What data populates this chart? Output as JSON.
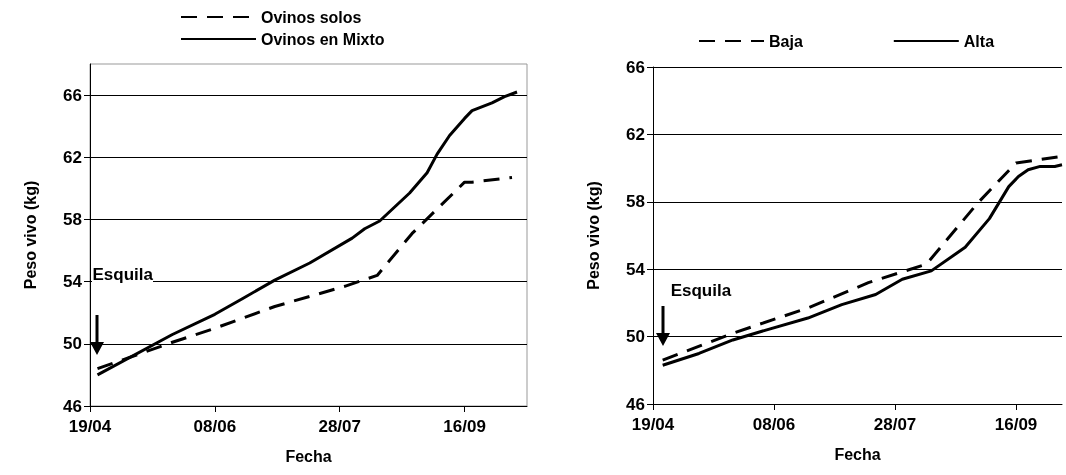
{
  "chart_data": [
    {
      "type": "line",
      "xlabel": "Fecha",
      "ylabel": "Peso vivo (kg)",
      "xlim": [
        "--04-19",
        "--10-11"
      ],
      "ylim": [
        46,
        68
      ],
      "xticks": [
        {
          "value": "--04-19",
          "label": "19/04"
        },
        {
          "value": "--06-08",
          "label": "08/06"
        },
        {
          "value": "--07-28",
          "label": "28/07"
        },
        {
          "value": "--09-16",
          "label": "16/09"
        }
      ],
      "yticks": [
        46,
        50,
        54,
        58,
        62,
        66
      ],
      "grid": "y",
      "legend": "top",
      "marker": "none",
      "annotations": [
        "Esquila"
      ],
      "series": [
        {
          "name": "Ovinos solos",
          "color": "#000000",
          "line_style": "dashed",
          "x": [
            "--04-22",
            "--05-22",
            "--06-08",
            "--07-02",
            "--07-30",
            "--08-12",
            "--08-26",
            "--09-16",
            "--09-19",
            "--10-05"
          ],
          "values": [
            48.4,
            50.1,
            51.0,
            52.4,
            53.7,
            54.4,
            57.1,
            60.4,
            60.4,
            60.7
          ]
        },
        {
          "name": "Ovinos en Mixto",
          "color": "#000000",
          "line_style": "solid",
          "x": [
            "--04-22",
            "--05-22",
            "--06-08",
            "--06-19",
            "--07-02",
            "--07-16",
            "--08-02",
            "--08-07",
            "--08-13",
            "--08-19",
            "--08-25",
            "--09-01",
            "--09-05",
            "--09-10",
            "--09-16",
            "--09-19",
            "--09-27",
            "--10-02",
            "--10-07"
          ],
          "values": [
            48.0,
            50.6,
            51.9,
            52.9,
            54.1,
            55.2,
            56.8,
            57.4,
            57.9,
            58.8,
            59.7,
            61.0,
            62.2,
            63.4,
            64.5,
            65.0,
            65.5,
            65.9,
            66.2
          ]
        }
      ]
    },
    {
      "type": "line",
      "xlabel": "Fecha",
      "ylabel": "Peso vivo (kg)",
      "xlim": [
        "--04-19",
        "--10-05"
      ],
      "ylim": [
        46,
        66
      ],
      "xticks": [
        {
          "value": "--04-19",
          "label": "19/04"
        },
        {
          "value": "--06-08",
          "label": "08/06"
        },
        {
          "value": "--07-28",
          "label": "28/07"
        },
        {
          "value": "--09-16",
          "label": "16/09"
        }
      ],
      "yticks": [
        46,
        50,
        54,
        58,
        62,
        66
      ],
      "grid": "y",
      "legend": "top",
      "marker": "none",
      "annotations": [
        "Esquila"
      ],
      "series": [
        {
          "name": "Baja",
          "color": "#000000",
          "line_style": "dashed",
          "x": [
            "--04-23",
            "--05-22",
            "--06-22",
            "--07-17",
            "--08-10",
            "--08-31",
            "--09-16",
            "--10-05"
          ],
          "values": [
            48.6,
            50.2,
            51.7,
            53.2,
            54.3,
            57.9,
            60.3,
            60.7
          ]
        },
        {
          "name": "Alta",
          "color": "#000000",
          "line_style": "solid",
          "x": [
            "--04-23",
            "--05-08",
            "--05-22",
            "--06-05",
            "--06-22",
            "--07-06",
            "--07-20",
            "--07-31",
            "--08-12",
            "--08-26",
            "--09-05",
            "--09-13",
            "--09-17",
            "--09-21",
            "--09-26",
            "--10-02",
            "--10-05"
          ],
          "values": [
            48.3,
            49.0,
            49.8,
            50.4,
            51.1,
            51.9,
            52.5,
            53.4,
            53.9,
            55.3,
            57.0,
            58.9,
            59.5,
            59.9,
            60.1,
            60.1,
            60.2
          ]
        }
      ]
    }
  ]
}
